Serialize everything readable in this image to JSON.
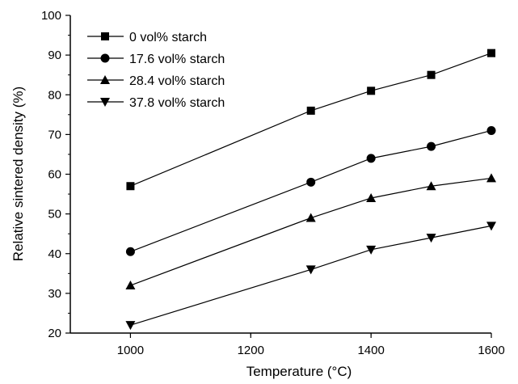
{
  "chart_data": {
    "type": "line",
    "title": "",
    "xlabel": "Temperature (°C)",
    "ylabel": "Relative sintered density (%)",
    "xlim": [
      900,
      1600
    ],
    "ylim": [
      20,
      100
    ],
    "x_ticks": [
      1000,
      1200,
      1400,
      1600
    ],
    "y_ticks": [
      20,
      30,
      40,
      50,
      60,
      70,
      80,
      90,
      100
    ],
    "grid": false,
    "legend_position": "top-left",
    "x": [
      1000,
      1300,
      1400,
      1500,
      1600
    ],
    "series": [
      {
        "name": "0 vol% starch",
        "marker": "square",
        "values": [
          57,
          76,
          81,
          85,
          90.5
        ]
      },
      {
        "name": "17.6 vol% starch",
        "marker": "circle",
        "values": [
          40.5,
          58,
          64,
          67,
          71
        ]
      },
      {
        "name": "28.4 vol% starch",
        "marker": "triangle-up",
        "values": [
          32,
          49,
          54,
          57,
          59
        ]
      },
      {
        "name": "37.8 vol% starch",
        "marker": "triangle-down",
        "values": [
          22,
          36,
          41,
          44,
          47
        ]
      }
    ],
    "colors": {
      "line": "#000000",
      "marker": "#000000",
      "axis": "#000000"
    }
  }
}
